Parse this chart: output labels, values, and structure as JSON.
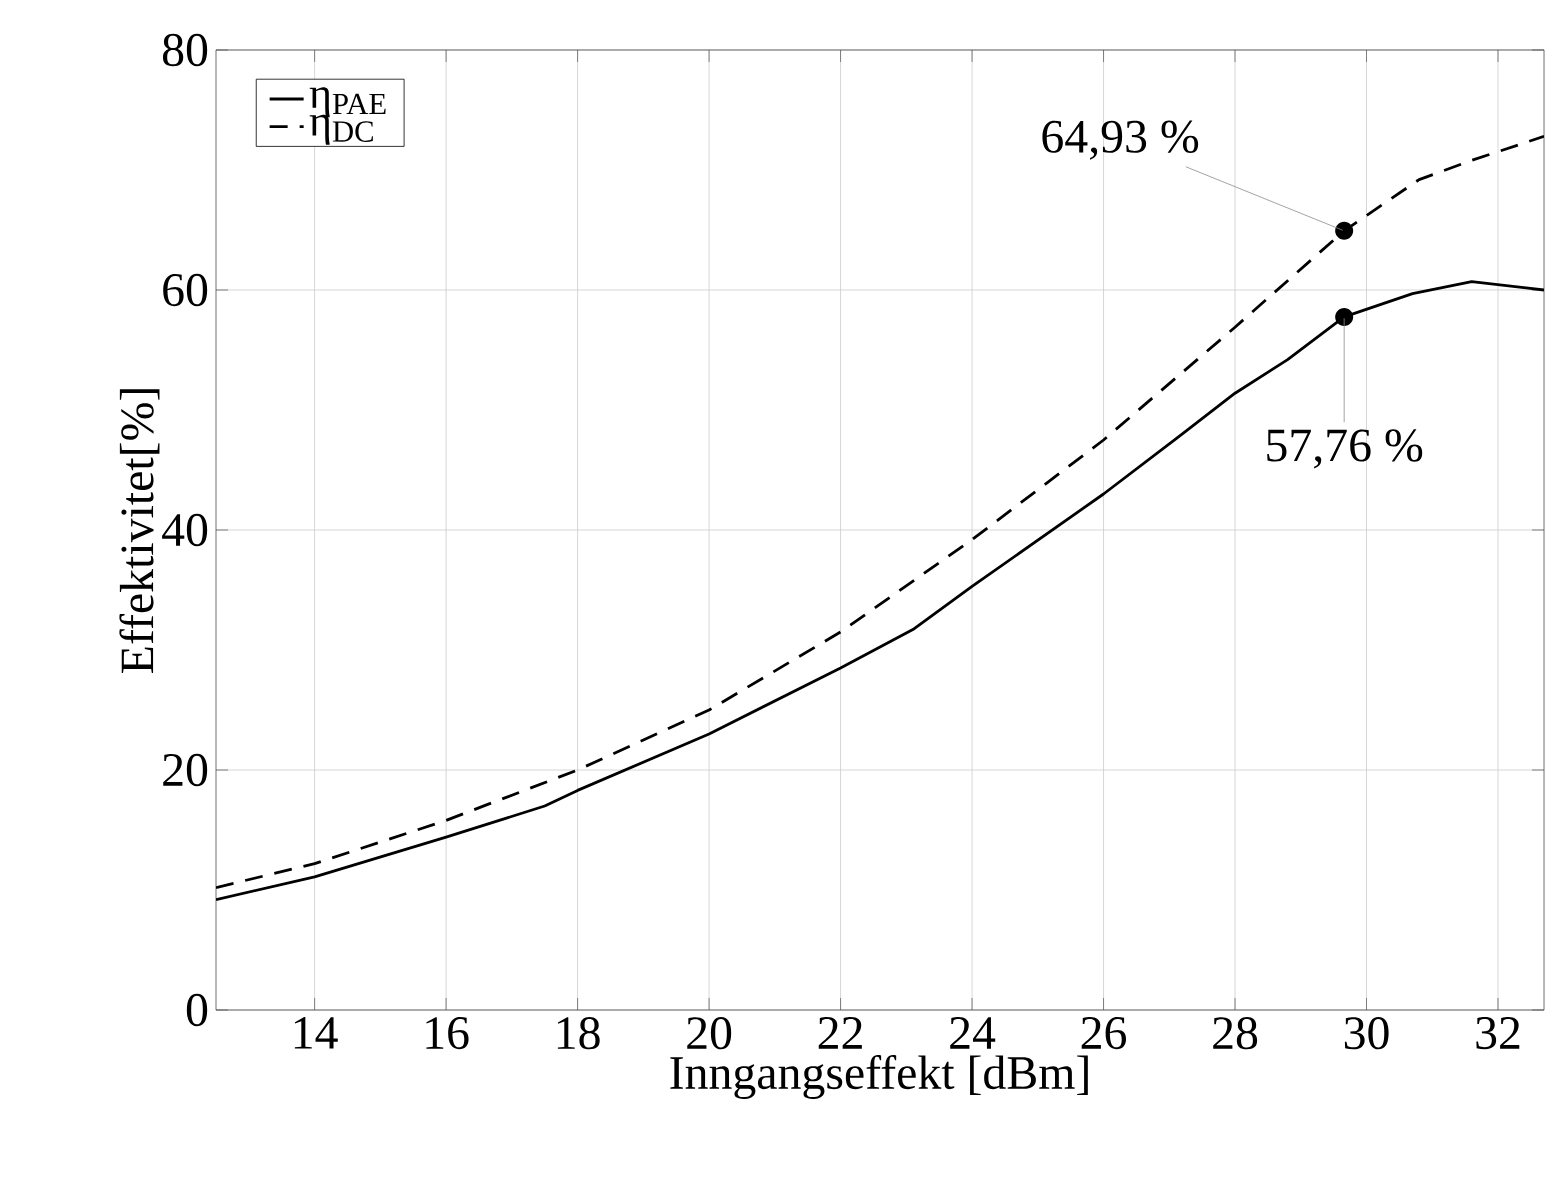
{
  "chart_data": {
    "type": "line",
    "xlabel": "Inngangseffekt [dBm]",
    "ylabel": "Effektivitet[%]",
    "xlim": [
      12.5,
      32.7
    ],
    "ylim": [
      0,
      80
    ],
    "xticks": [
      14,
      16,
      18,
      20,
      22,
      24,
      26,
      28,
      30,
      32
    ],
    "yticks": [
      0,
      20,
      40,
      60,
      80
    ],
    "grid": true,
    "legend": "top left",
    "series": [
      {
        "name": "η$_{PAE}$",
        "color": "#000000",
        "line_style": "solid",
        "x": [
          12.5,
          14,
          16,
          17.5,
          18,
          20,
          22,
          23.1,
          24,
          26,
          27.15,
          28,
          28.8,
          29.66,
          30.7,
          31.6,
          32.7
        ],
        "values": [
          9.2,
          11.1,
          14.4,
          17.0,
          18.3,
          23.0,
          28.5,
          31.7,
          35.3,
          43.0,
          47.8,
          51.4,
          54.2,
          57.76,
          59.7,
          60.7,
          60.0
        ]
      },
      {
        "name": "η$_{DC}$",
        "color": "#000000",
        "line_style": "dashed",
        "x": [
          12.5,
          14,
          16,
          18,
          20,
          22,
          24,
          26,
          28,
          29.66,
          30.8,
          31.6,
          32.7
        ],
        "values": [
          10.2,
          12.2,
          15.8,
          20.0,
          25.0,
          31.5,
          39.2,
          47.5,
          56.9,
          64.93,
          69.2,
          70.8,
          72.8
        ]
      }
    ],
    "annotations": [
      {
        "text": "57,76 %",
        "x": 29.66,
        "y": 57.76
      },
      {
        "text": "64,93 %",
        "x": 29.66,
        "y": 64.93
      }
    ]
  }
}
